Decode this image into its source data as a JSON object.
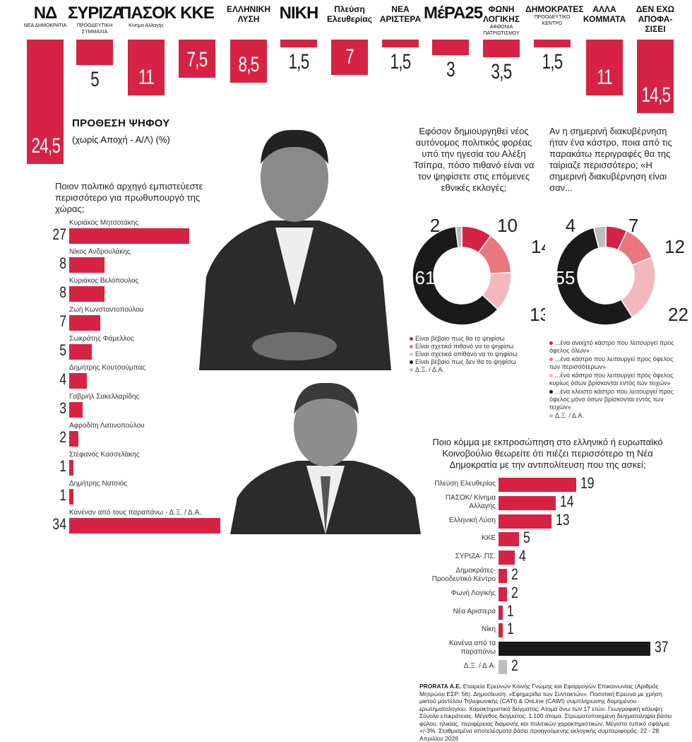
{
  "header": {
    "parties": [
      {
        "logo_big": "ΝΔ",
        "logo_sub": "ΝΕΑ ΔΗΜΟΚΡΑΤΙΑ",
        "value": "24,5",
        "num": 24.5
      },
      {
        "logo_big": "ΣΥΡΙΖΑ",
        "logo_sub": "ΠΡΟΟΔΕΥΤΙΚΗ ΣΥΜΜΑΧΙΑ",
        "value": "5",
        "num": 5
      },
      {
        "logo_big": "ΠΑΣΟΚ",
        "logo_sub": "Κίνημα Αλλαγής",
        "value": "11",
        "num": 11
      },
      {
        "logo_big": "ΚΚΕ",
        "logo_sub": "",
        "value": "7,5",
        "num": 7.5
      },
      {
        "logo_big": "ΕΛΛΗΝΙΚΗ ΛΥΣΗ",
        "logo_sub": "",
        "value": "8,5",
        "num": 8.5
      },
      {
        "logo_big": "ΝΙΚΗ",
        "logo_sub": "",
        "value": "1,5",
        "num": 1.5
      },
      {
        "logo_big": "Πλεύση Ελευθερίας",
        "logo_sub": "",
        "value": "7",
        "num": 7
      },
      {
        "logo_big": "ΝΕΑ ΑΡΙΣΤΕΡΑ",
        "logo_sub": "",
        "value": "1,5",
        "num": 1.5
      },
      {
        "logo_big": "ΜέΡΑ25",
        "logo_sub": "",
        "value": "3",
        "num": 3
      },
      {
        "logo_big": "ΦΩΝΗ ΛΟΓΙΚΗΣ",
        "logo_sub": "ΑΦΘΟΝΙΑ ΠΑΤΡΙΩΤΙΣΜΟΥ",
        "value": "3,5",
        "num": 3.5
      },
      {
        "logo_big": "ΔΗΜΟΚΡΑΤΕΣ",
        "logo_sub": "ΠΡΟΟΔΕΥΤΙΚΟ ΚΕΝΤΡΟ",
        "value": "1,5",
        "num": 1.5
      },
      {
        "logo_big": "ΑΛΛΑ ΚΟΜΜΑΤΑ",
        "logo_sub": "",
        "value": "11",
        "num": 11
      },
      {
        "logo_big": "ΔΕΝ ΕΧΩ ΑΠΟΦΑ-ΣΙΣΕΙ",
        "logo_sub": "",
        "value": "14,5",
        "num": 14.5
      }
    ],
    "title": "ΠΡΟΘΕΣΗ ΨΗΦΟΥ",
    "subtitle": "(χωρίς Αποχή - Α/Λ) (%)"
  },
  "chart_data": [
    {
      "type": "bar",
      "title": "ΠΡΟΘΕΣΗ ΨΗΦΟΥ",
      "subtitle": "(χωρίς Αποχή - Α/Λ) (%)",
      "categories": [
        "ΝΔ",
        "ΣΥΡΙΖΑ",
        "ΠΑΣΟΚ",
        "ΚΚΕ",
        "Ελληνική Λύση",
        "Νίκη",
        "Πλεύση Ελευθερίας",
        "Νέα Αριστερά",
        "ΜέΡΑ25",
        "Φωνή Λογικής",
        "Δημοκράτες",
        "Άλλα κόμματα",
        "Δεν έχω αποφασίσει"
      ],
      "values": [
        24.5,
        5,
        11,
        7.5,
        8.5,
        1.5,
        7,
        1.5,
        3,
        3.5,
        1.5,
        11,
        14.5
      ]
    },
    {
      "type": "bar",
      "title": "Ποιον πολιτικό αρχηγό εμπιστεύεστε περισσότερο για πρωθυπουργό της χώρας;",
      "categories": [
        "Κυριάκος Μητσοτάκης",
        "Νίκος Ανδρουλάκης",
        "Κυριάκος Βελόπουλος",
        "Ζωή Κωνσταντοπούλου",
        "Σωκράτης Φάμελλος",
        "Δημήτρης Κουτσούμπας",
        "Γαβριήλ Σακελλαρίδης",
        "Αφροδίτη Λατινοπούλου",
        "Στέφανος Κασσελάκης",
        "Δημήτρης Νατσιός",
        "Κανέναν από τους παραπάνω - Δ.Ξ. / Δ.Α."
      ],
      "values": [
        27,
        8,
        8,
        7,
        5,
        4,
        3,
        2,
        1,
        1,
        34
      ]
    },
    {
      "type": "pie",
      "title": "Εφόσον δημιουργηθεί νέος αυτόνομος πολιτικός φορέας υπό την ηγεσία του Αλέξη Τσίπρα, πόσο πιθανό είναι να τον ψηφίσετε στις επόμενες εθνικές εκλογές;",
      "categories": [
        "Είναι βέβαιο πως θα το ψηφίσω",
        "Είναι σχετικά πιθανό να το ψηφίσω",
        "Είναι σχετικά απίθανο να το ψηφίσω",
        "Είναι βέβαιο πως δεν θα το ψηφίσω",
        "Δ.Ξ. / Δ.Α."
      ],
      "values": [
        10,
        14,
        13,
        61,
        2
      ]
    },
    {
      "type": "pie",
      "title": "Αν η σημερινή διακυβέρνηση ήταν ένα κάστρο, ποια από τις παρακάτω περιγραφές θα της ταίριαζε περισσότερο; «Η σημερινή διακυβέρνηση είναι σαν...",
      "categories": [
        "...ένα ανοιχτό κάστρο που λειτουργεί προς όφελος όλων»",
        "...ένα κάστρο που λειτουργεί προς όφελος των περισσότερων»",
        "...ένα κάστρο που λειτουργεί προς όφελος κυρίως όσων βρίσκονται εντός των τειχών»",
        "...ένα κλειστό κάστρο που λειτουργεί προς όφελος μόνο όσων βρίσκονται εντός των τειχών»",
        "Δ.Ξ. / Δ.Α."
      ],
      "values": [
        7,
        12,
        22,
        55,
        4
      ]
    },
    {
      "type": "bar",
      "title": "Ποιο κόμμα με εκπροσώπηση στο ελληνικό ή ευρωπαϊκό Κοινοβούλιο θεωρείτε ότι πιέζει περισσότερο τη Νέα Δημοκρατία με την αντιπολίτευση που της ασκεί;",
      "categories": [
        "Πλεύση Ελευθερίας",
        "ΠΑΣΟΚ/ Κίνημα Αλλαγής",
        "Ελληνική Λύση",
        "ΚΚΕ",
        "ΣΥΡΙΖΑ-.ΠΣ.",
        "Δημοκράτες- Προοδευτικό Κέντρο",
        "Φωνή Λογικής",
        "Νέα Αριστερά",
        "Νίκη",
        "Κανένα από τα παραπάνω",
        "Δ.Ξ. / Δ.Α."
      ],
      "values": [
        19,
        14,
        13,
        5,
        4,
        2,
        2,
        1,
        1,
        37,
        2
      ]
    }
  ],
  "leaders": {
    "question": "Ποιον πολιτικό αρχηγό εμπιστεύεστε περισσότερο για πρωθυπουργό της χώρας;",
    "items": [
      {
        "name": "Κυριάκος Μητσοτάκης",
        "value": "27",
        "num": 27
      },
      {
        "name": "Νίκος Ανδρουλάκης",
        "value": "8",
        "num": 8
      },
      {
        "name": "Κυριάκος Βελόπουλος",
        "value": "8",
        "num": 8
      },
      {
        "name": "Ζωή Κωνσταντοπούλου",
        "value": "7",
        "num": 7
      },
      {
        "name": "Σωκράτης Φάμελλος",
        "value": "5",
        "num": 5
      },
      {
        "name": "Δημήτρης Κουτσούμπας",
        "value": "4",
        "num": 4
      },
      {
        "name": "Γαβριήλ Σακελλαρίδης",
        "value": "3",
        "num": 3
      },
      {
        "name": "Αφροδίτη Λατινοπούλου",
        "value": "2",
        "num": 2
      },
      {
        "name": "Στέφανος Κασσελάκης",
        "value": "1",
        "num": 1
      },
      {
        "name": "Δημήτρης Νατσιός",
        "value": "1",
        "num": 1
      },
      {
        "name": "Κανέναν από τους παραπάνω - Δ.Ξ. / Δ.Α.",
        "value": "34",
        "num": 34
      }
    ]
  },
  "donut1": {
    "question": "Εφόσον δημιουργηθεί νέος αυτόνομος πολιτικός φορέας υπό την ηγεσία του Αλέξη Τσίπρα, πόσο πιθανό είναι να τον ψηφίσετε στις επόμενες εθνικές εκλογές;",
    "segments": [
      {
        "label": "Είναι βέβαιο πως θα το ψηφίσω",
        "value": "10",
        "num": 10,
        "color": "#d62344"
      },
      {
        "label": "Είναι σχετικά πιθανό να το ψηφίσω",
        "value": "14",
        "num": 14,
        "color": "#e8777f"
      },
      {
        "label": "Είναι σχετικά απίθανο να το ψηφίσω",
        "value": "13",
        "num": 13,
        "color": "#f4b8bc"
      },
      {
        "label": "Είναι βέβαιο πως δεν θα το ψηφίσω",
        "value": "61",
        "num": 61,
        "color": "#1a1a1a"
      },
      {
        "label": "Δ.Ξ. / Δ.Α.",
        "value": "2",
        "num": 2,
        "color": "#bdbdbd"
      }
    ]
  },
  "donut2": {
    "question": "Αν η σημερινή διακυβέρνηση ήταν ένα κάστρο, ποια από τις παρακάτω περιγραφές θα της ταίριαζε περισσότερο; «Η σημερινή διακυβέρνηση είναι σαν...",
    "segments": [
      {
        "label": "...ένα ανοιχτό κάστρο που λειτουργεί προς όφελος όλων»",
        "value": "7",
        "num": 7,
        "color": "#d62344"
      },
      {
        "label": "...ένα κάστρο που λειτουργεί προς όφελος των περισσότερων»",
        "value": "12",
        "num": 12,
        "color": "#e8777f"
      },
      {
        "label": "...ένα κάστρο που λειτουργεί προς όφελος κυρίως όσων βρίσκονται εντός των τειχών»",
        "value": "22",
        "num": 22,
        "color": "#f4b8bc"
      },
      {
        "label": "...ένα κλειστό κάστρο που λειτουργεί προς όφελος μόνο όσων βρίσκονται εντός των τειχών»",
        "value": "55",
        "num": 55,
        "color": "#1a1a1a"
      },
      {
        "label": "Δ.Ξ. / Δ.Α.",
        "value": "4",
        "num": 4,
        "color": "#bdbdbd"
      }
    ]
  },
  "pressure": {
    "question": "Ποιο κόμμα με εκπροσώπηση στο ελληνικό ή ευρωπαϊκό Κοινοβούλιο θεωρείτε ότι πιέζει περισσότερο τη Νέα Δημοκρατία με την αντιπολίτευση που της ασκεί;",
    "items": [
      {
        "name": "Πλεύση Ελευθερίας",
        "value": "19",
        "num": 19,
        "color": "#d62344"
      },
      {
        "name": "ΠΑΣΟΚ/ Κίνημα Αλλαγής",
        "value": "14",
        "num": 14,
        "color": "#d62344"
      },
      {
        "name": "Ελληνική Λύση",
        "value": "13",
        "num": 13,
        "color": "#d62344"
      },
      {
        "name": "ΚΚΕ",
        "value": "5",
        "num": 5,
        "color": "#d62344"
      },
      {
        "name": "ΣΥΡΙΖΑ-.ΠΣ.",
        "value": "4",
        "num": 4,
        "color": "#d62344"
      },
      {
        "name": "Δημοκράτες- Προοδευτικό Κέντρο",
        "value": "2",
        "num": 2,
        "color": "#d62344"
      },
      {
        "name": "Φωνή Λογικής",
        "value": "2",
        "num": 2,
        "color": "#d62344"
      },
      {
        "name": "Νέα Αριστερά",
        "value": "1",
        "num": 1,
        "color": "#d62344"
      },
      {
        "name": "Νίκη",
        "value": "1",
        "num": 1,
        "color": "#d62344"
      },
      {
        "name": "Κανένα από τα παραπάνω",
        "value": "37",
        "num": 37,
        "color": "#1a1a1a"
      },
      {
        "name": "Δ.Ξ. / Δ.Α.",
        "value": "2",
        "num": 2,
        "color": "#bdbdbd"
      }
    ]
  },
  "footnote": {
    "bold": "PRORATA Α.Ε.",
    "text": "Εταιρεία Ερευνών Κοινής Γνώμης και Εφαρμογών Επικοινωνίας (Αριθμός Μητρώου ΕΣΡ: 56). Δημοσίευση: «Εφημερίδα των Συντακτών». Ποσοτική Ερευνα με χρήση μικτού μοντέλου Τηλεφωνικής (CATI) & OnLine (CAWI) συμπλήρωσης δομημένου ερωτηματολογίου. Χαρακτηριστικά δείγματος: Ατομα άνω των 17 ετών. Γεωγραφική κάλυψη: Σύνολο επικράτειας. Μέγεθος δείγματος: 1.100 άτομα. Στρωματοποιημένη δειγματοληψία βάσει φύλου, ηλικίας, περιφέρειας διαμονής και πολιτικών χαρακτηριστικών. Μέγιστο τυπικό σφάλμα: +/-3%. Σταθμισμένα αποτελέσματα βάσει προηγούμενης εκλογικής συμπεριφοράς. 22 - 28 Απριλίου 2026"
  },
  "colors": {
    "accent": "#d62344",
    "dark": "#1a1a1a",
    "grey": "#bdbdbd",
    "mid": "#e8777f",
    "light": "#f4b8bc"
  }
}
